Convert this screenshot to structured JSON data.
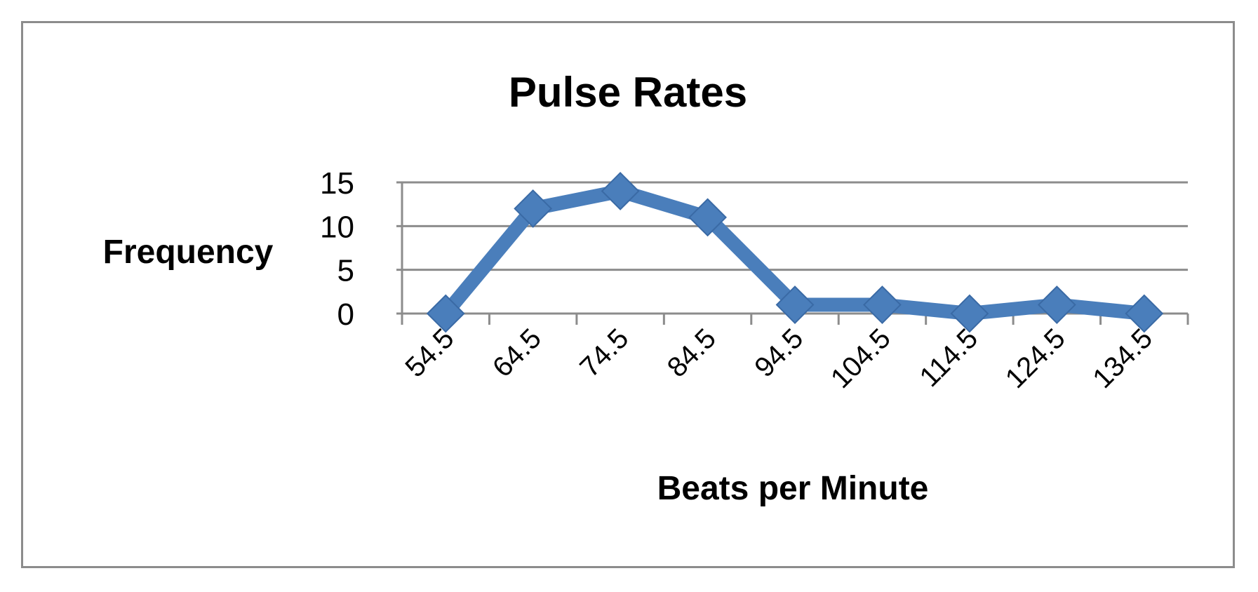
{
  "chart_data": {
    "type": "line",
    "title": "Pulse Rates",
    "xlabel": "Beats per Minute",
    "ylabel": "Frequency",
    "categories": [
      "54.5",
      "64.5",
      "74.5",
      "84.5",
      "94.5",
      "104.5",
      "114.5",
      "124.5",
      "134.5"
    ],
    "series": [
      {
        "values": [
          0,
          12,
          14,
          11,
          1,
          1,
          0,
          1,
          0
        ]
      }
    ],
    "ylim": [
      0,
      15
    ],
    "yticks": [
      0,
      5,
      10,
      15
    ],
    "grid": true,
    "marker": "diamond",
    "colors": {
      "series": "#4a7ebb",
      "grid": "#8c8c8c",
      "frame": "#8c8c8c"
    }
  }
}
